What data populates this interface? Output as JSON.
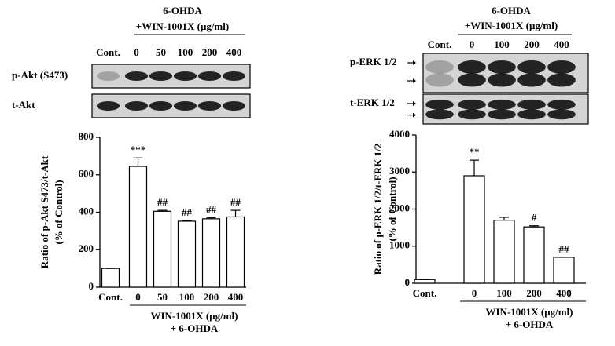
{
  "chart_data": [
    {
      "type": "bar",
      "blot": {
        "header": [
          "6-OHDA",
          "+WIN-1001X (μg/ml)"
        ],
        "lanes": [
          "Cont.",
          "0",
          "50",
          "100",
          "200",
          "400"
        ],
        "rows": [
          "p-Akt (S473)",
          "t-Akt"
        ]
      },
      "ylabel": [
        "Ratio of p-Akt S473/t-Akt",
        "(% of Control)"
      ],
      "xlabel": [
        "WIN-1001X (μg/ml)",
        "+ 6-OHDA"
      ],
      "categories": [
        "Cont.",
        "0",
        "50",
        "100",
        "200",
        "400"
      ],
      "values": [
        100,
        645,
        405,
        352,
        365,
        375
      ],
      "errors": [
        0,
        45,
        5,
        3,
        5,
        35
      ],
      "annotations": [
        null,
        "***",
        "##",
        "##",
        "##",
        "##"
      ],
      "color": "#ffffff",
      "ylim": [
        0,
        800
      ],
      "yticks": [
        0,
        200,
        400,
        600,
        800
      ]
    },
    {
      "type": "bar",
      "blot": {
        "header": [
          "6-OHDA",
          "+WIN-1001X (μg/ml)"
        ],
        "lanes": [
          "Cont.",
          "0",
          "100",
          "200",
          "400"
        ],
        "rows": [
          "p-ERK 1/2",
          "t-ERK 1/2"
        ]
      },
      "ylabel": [
        "Ratio of p-ERK 1/2/t-ERK 1/2",
        "(% of Control)"
      ],
      "xlabel": [
        "WIN-1001X (μg/ml)",
        "+ 6-OHDA"
      ],
      "categories": [
        "Cont.",
        "0",
        "100",
        "200",
        "400"
      ],
      "values": [
        100,
        2900,
        1700,
        1520,
        700
      ],
      "errors": [
        0,
        420,
        80,
        30,
        0
      ],
      "annotations": [
        null,
        "**",
        null,
        "#",
        "##"
      ],
      "color": "#ffffff",
      "ylim": [
        0,
        4000
      ],
      "yticks": [
        0,
        1000,
        2000,
        3000,
        4000
      ]
    }
  ]
}
